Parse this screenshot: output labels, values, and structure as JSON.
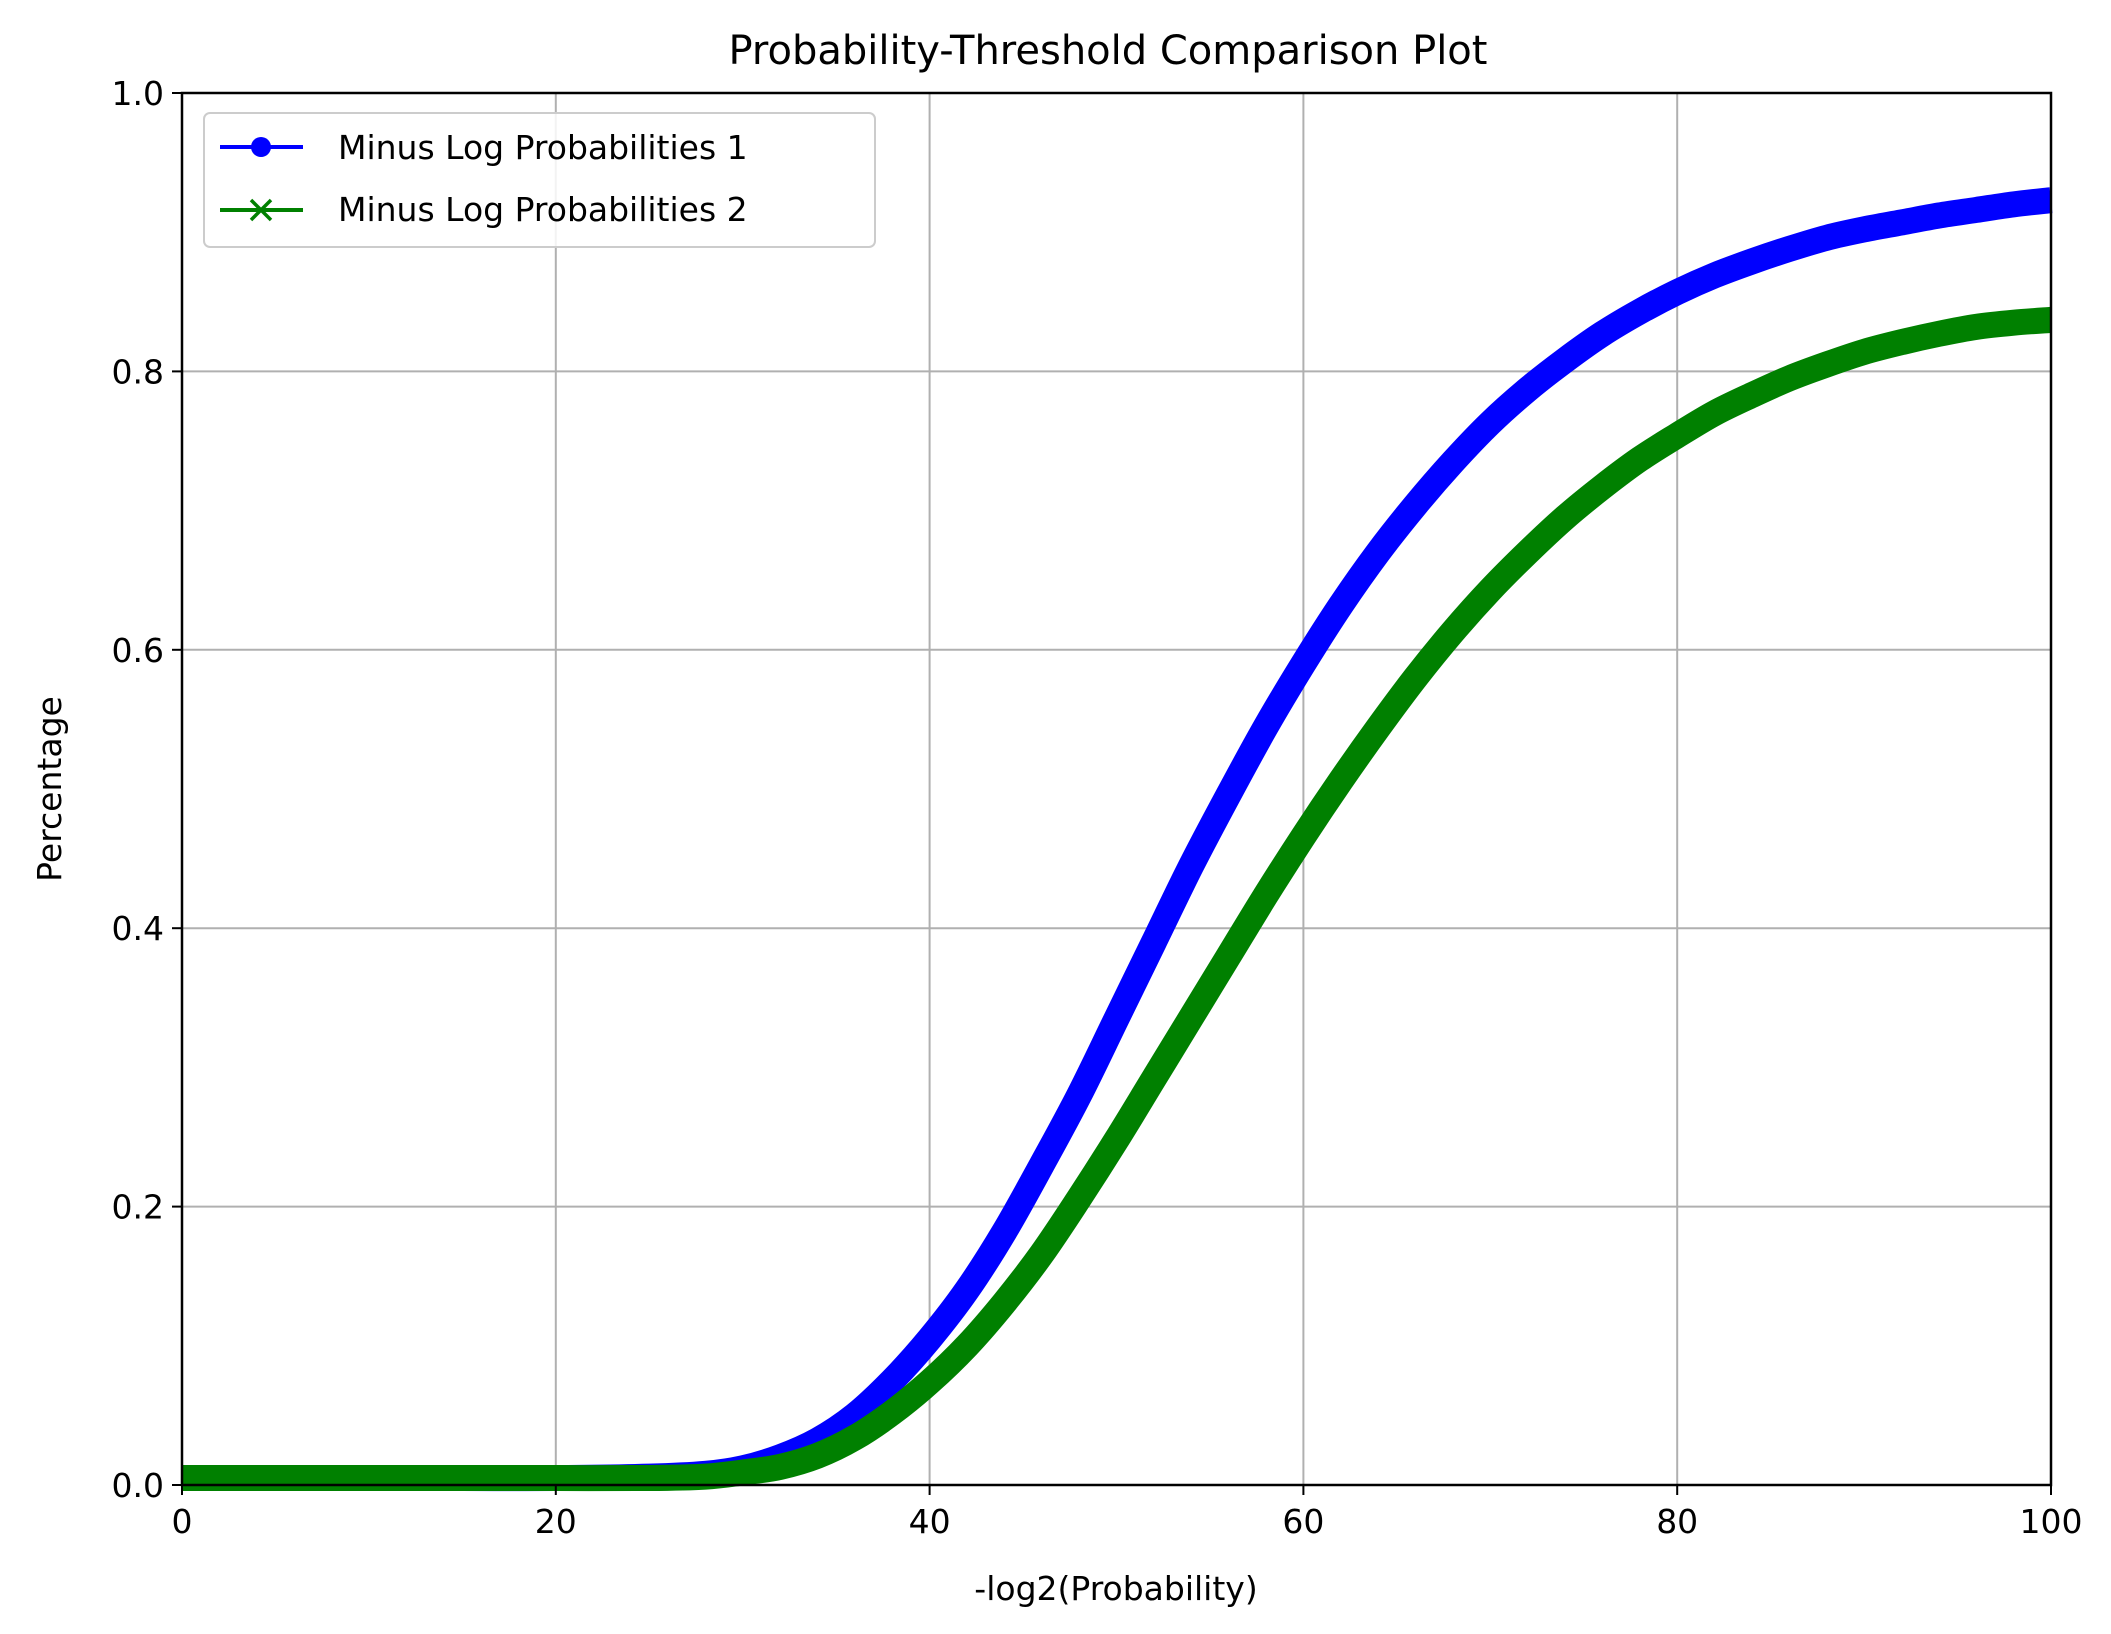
{
  "chart_data": {
    "type": "line",
    "title": "Probability-Threshold Comparison Plot",
    "xlabel": "-log2(Probability)",
    "ylabel": "Percentage",
    "xlim": [
      0,
      100
    ],
    "ylim": [
      0,
      1.0
    ],
    "x_ticks": [
      0,
      20,
      40,
      60,
      80,
      100
    ],
    "y_ticks": [
      0.0,
      0.2,
      0.4,
      0.6,
      0.8,
      1.0
    ],
    "x_tick_labels": [
      "0",
      "20",
      "40",
      "60",
      "80",
      "100"
    ],
    "y_tick_labels": [
      "0.0",
      "0.2",
      "0.4",
      "0.6",
      "0.8",
      "1.0"
    ],
    "grid": true,
    "legend_position": "top-left",
    "x": [
      0,
      5,
      10,
      15,
      20,
      25,
      28,
      30,
      32,
      34,
      36,
      38,
      40,
      42,
      44,
      46,
      48,
      50,
      52,
      54,
      56,
      58,
      60,
      62,
      64,
      66,
      68,
      70,
      72,
      74,
      76,
      78,
      80,
      82,
      84,
      86,
      88,
      90,
      92,
      94,
      96,
      98,
      100
    ],
    "series": [
      {
        "name": "Minus Log Probabilities 1",
        "color": "#0000ff",
        "marker": "circle",
        "values": [
          0.005,
          0.005,
          0.005,
          0.005,
          0.005,
          0.006,
          0.008,
          0.012,
          0.02,
          0.032,
          0.05,
          0.075,
          0.105,
          0.14,
          0.182,
          0.23,
          0.28,
          0.335,
          0.39,
          0.445,
          0.496,
          0.545,
          0.59,
          0.632,
          0.67,
          0.704,
          0.735,
          0.763,
          0.787,
          0.808,
          0.827,
          0.843,
          0.857,
          0.869,
          0.879,
          0.888,
          0.896,
          0.902,
          0.907,
          0.912,
          0.916,
          0.92,
          0.923
        ]
      },
      {
        "name": "Minus Log Probabilities 2",
        "color": "#008000",
        "marker": "x",
        "values": [
          0.005,
          0.005,
          0.005,
          0.005,
          0.005,
          0.005,
          0.006,
          0.009,
          0.013,
          0.021,
          0.034,
          0.052,
          0.074,
          0.1,
          0.131,
          0.166,
          0.206,
          0.248,
          0.292,
          0.336,
          0.38,
          0.424,
          0.466,
          0.506,
          0.544,
          0.58,
          0.613,
          0.643,
          0.67,
          0.695,
          0.717,
          0.737,
          0.754,
          0.77,
          0.783,
          0.795,
          0.805,
          0.814,
          0.821,
          0.827,
          0.832,
          0.835,
          0.837
        ]
      }
    ]
  }
}
